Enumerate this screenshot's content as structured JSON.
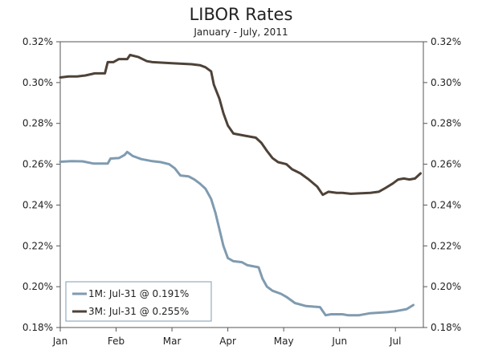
{
  "chart_data": {
    "type": "line",
    "title": "LIBOR Rates",
    "subtitle": "January - July, 2011",
    "xlabel": "",
    "ylabel": "",
    "ylim": [
      0.18,
      0.32
    ],
    "xlim": [
      0,
      6.5
    ],
    "y_ticks": [
      0.18,
      0.2,
      0.22,
      0.24,
      0.26,
      0.28,
      0.3,
      0.32
    ],
    "y_tick_labels": [
      "0.18%",
      "0.20%",
      "0.22%",
      "0.24%",
      "0.26%",
      "0.28%",
      "0.30%",
      "0.32%"
    ],
    "x_ticks": [
      0,
      1,
      2,
      3,
      4,
      5,
      6
    ],
    "x_tick_labels": [
      "Jan",
      "Feb",
      "Mar",
      "Apr",
      "May",
      "Jun",
      "Jul"
    ],
    "legend_position": "bottom-left",
    "grid": false,
    "series": [
      {
        "name": "1M: Jul-31 @ 0.191%",
        "color": "#7f9bb0",
        "points": [
          [
            0.0,
            0.2612
          ],
          [
            0.2,
            0.2615
          ],
          [
            0.4,
            0.2614
          ],
          [
            0.6,
            0.2603
          ],
          [
            0.85,
            0.2603
          ],
          [
            0.9,
            0.2628
          ],
          [
            1.05,
            0.263
          ],
          [
            1.15,
            0.2645
          ],
          [
            1.2,
            0.266
          ],
          [
            1.3,
            0.264
          ],
          [
            1.45,
            0.2625
          ],
          [
            1.65,
            0.2615
          ],
          [
            1.8,
            0.261
          ],
          [
            1.95,
            0.26
          ],
          [
            2.05,
            0.258
          ],
          [
            2.15,
            0.2545
          ],
          [
            2.3,
            0.254
          ],
          [
            2.4,
            0.2525
          ],
          [
            2.5,
            0.2505
          ],
          [
            2.6,
            0.248
          ],
          [
            2.7,
            0.243
          ],
          [
            2.78,
            0.236
          ],
          [
            2.85,
            0.228
          ],
          [
            2.92,
            0.22
          ],
          [
            3.0,
            0.214
          ],
          [
            3.1,
            0.2125
          ],
          [
            3.25,
            0.212
          ],
          [
            3.35,
            0.2105
          ],
          [
            3.55,
            0.2095
          ],
          [
            3.62,
            0.204
          ],
          [
            3.7,
            0.2
          ],
          [
            3.8,
            0.198
          ],
          [
            3.95,
            0.1965
          ],
          [
            4.05,
            0.195
          ],
          [
            4.2,
            0.192
          ],
          [
            4.4,
            0.1905
          ],
          [
            4.65,
            0.19
          ],
          [
            4.75,
            0.186
          ],
          [
            4.85,
            0.1865
          ],
          [
            5.05,
            0.1865
          ],
          [
            5.15,
            0.186
          ],
          [
            5.35,
            0.186
          ],
          [
            5.55,
            0.187
          ],
          [
            5.85,
            0.1875
          ],
          [
            6.0,
            0.188
          ],
          [
            6.2,
            0.189
          ],
          [
            6.32,
            0.191
          ]
        ]
      },
      {
        "name": "3M: Jul-31 @ 0.255%",
        "color": "#4e4238",
        "points": [
          [
            0.0,
            0.3025
          ],
          [
            0.15,
            0.303
          ],
          [
            0.3,
            0.303
          ],
          [
            0.45,
            0.3035
          ],
          [
            0.62,
            0.3045
          ],
          [
            0.8,
            0.3045
          ],
          [
            0.85,
            0.31
          ],
          [
            0.95,
            0.31
          ],
          [
            1.05,
            0.3115
          ],
          [
            1.2,
            0.3115
          ],
          [
            1.25,
            0.3135
          ],
          [
            1.4,
            0.3125
          ],
          [
            1.55,
            0.3105
          ],
          [
            1.65,
            0.31
          ],
          [
            2.0,
            0.3095
          ],
          [
            2.35,
            0.309
          ],
          [
            2.5,
            0.3085
          ],
          [
            2.6,
            0.3075
          ],
          [
            2.7,
            0.3055
          ],
          [
            2.75,
            0.299
          ],
          [
            2.85,
            0.292
          ],
          [
            2.92,
            0.285
          ],
          [
            3.0,
            0.279
          ],
          [
            3.1,
            0.275
          ],
          [
            3.3,
            0.274
          ],
          [
            3.5,
            0.273
          ],
          [
            3.6,
            0.2705
          ],
          [
            3.7,
            0.2665
          ],
          [
            3.8,
            0.263
          ],
          [
            3.9,
            0.261
          ],
          [
            4.05,
            0.26
          ],
          [
            4.15,
            0.2575
          ],
          [
            4.3,
            0.2555
          ],
          [
            4.45,
            0.2525
          ],
          [
            4.6,
            0.249
          ],
          [
            4.7,
            0.245
          ],
          [
            4.8,
            0.2465
          ],
          [
            4.95,
            0.246
          ],
          [
            5.05,
            0.246
          ],
          [
            5.2,
            0.2455
          ],
          [
            5.55,
            0.246
          ],
          [
            5.7,
            0.2465
          ],
          [
            5.8,
            0.248
          ],
          [
            5.95,
            0.2505
          ],
          [
            6.05,
            0.2525
          ],
          [
            6.15,
            0.253
          ],
          [
            6.25,
            0.2525
          ],
          [
            6.35,
            0.253
          ],
          [
            6.45,
            0.2555
          ]
        ]
      }
    ]
  }
}
